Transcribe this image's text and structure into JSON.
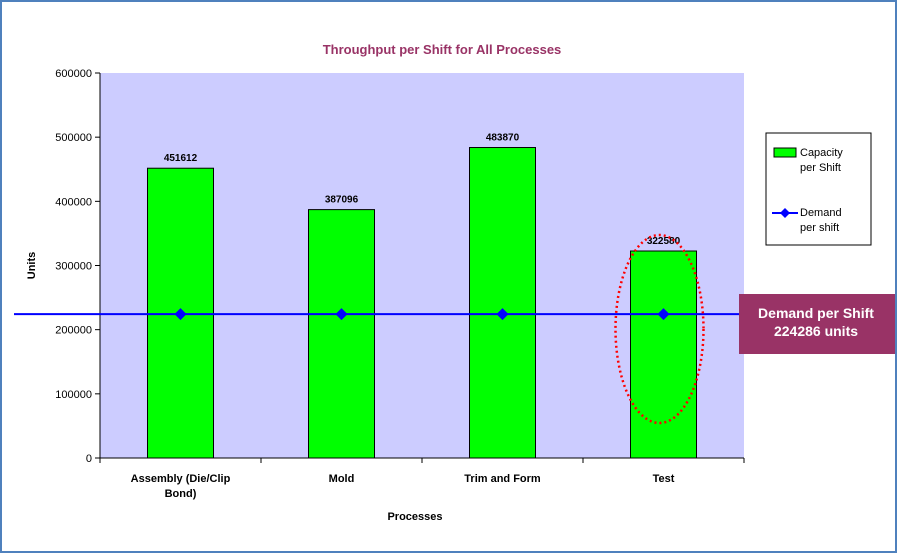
{
  "chart_data": {
    "type": "bar",
    "title": "Throughput per Shift for All Processes",
    "xlabel": "Processes",
    "ylabel": "Units",
    "categories": [
      "Assembly (Die/Clip Bond)",
      "Mold",
      "Trim and Form",
      "Test"
    ],
    "category_lines": [
      [
        "Assembly (Die/Clip",
        "Bond)"
      ],
      [
        "Mold"
      ],
      [
        "Trim and Form"
      ],
      [
        "Test"
      ]
    ],
    "ylim": [
      0,
      600000
    ],
    "yticks": [
      0,
      100000,
      200000,
      300000,
      400000,
      500000,
      600000
    ],
    "grid": false,
    "legend_position": "right",
    "series": [
      {
        "name": "Capacity per Shift",
        "legend_lines": [
          "Capacity",
          "per Shift"
        ],
        "kind": "bar",
        "color": "#00ff00",
        "values": [
          451612,
          387096,
          483870,
          322580
        ],
        "data_labels": [
          "451612",
          "387096",
          "483870",
          "322580"
        ]
      },
      {
        "name": "Demand per shift",
        "legend_lines": [
          "Demand",
          "per shift"
        ],
        "kind": "line",
        "color": "#0000ff",
        "values": [
          224286,
          224286,
          224286,
          224286
        ]
      }
    ],
    "plot_background": "#ccccff",
    "title_color": "#993366",
    "annotation": {
      "lines": [
        "Demand per Shift",
        "224286 units"
      ],
      "value": 224286,
      "background": "#993366",
      "text_color": "#ffffff"
    },
    "highlight": {
      "category": "Test",
      "color": "#ff0000"
    }
  }
}
